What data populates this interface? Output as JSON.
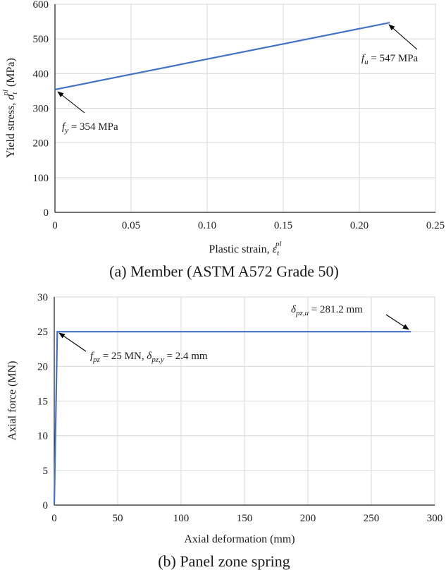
{
  "chart_data": [
    {
      "type": "line",
      "caption": "(a) Member (ASTM A572 Grade 50)",
      "xlabel": "Plastic strain, ",
      "xlabel_symbol": "ε",
      "xlabel_sub": "t",
      "xlabel_sup": "pl",
      "ylabel": "Yield stress, ",
      "ylabel_symbol": "σ",
      "ylabel_sub": "t",
      "ylabel_sup": "pl",
      "ylabel_unit": " (MPa)",
      "xlim": [
        0,
        0.25
      ],
      "ylim": [
        0,
        600
      ],
      "xticks": [
        0,
        0.05,
        0.1,
        0.15,
        0.2,
        0.25
      ],
      "xtick_labels": [
        "0",
        "0.05",
        "0.10",
        "0.15",
        "0.20",
        "0.25"
      ],
      "yticks": [
        0,
        100,
        200,
        300,
        400,
        500,
        600
      ],
      "ytick_labels": [
        "0",
        "100",
        "200",
        "300",
        "400",
        "500",
        "600"
      ],
      "grid": true,
      "series": [
        {
          "x": [
            0,
            0.22
          ],
          "y": [
            354,
            547
          ],
          "color": "#4472c4"
        }
      ],
      "annotations": [
        {
          "label": "f",
          "sub": "y",
          "rest": " = 354 MPa",
          "point": [
            0,
            354
          ]
        },
        {
          "label": "f",
          "sub": "u",
          "rest": " = 547 MPa",
          "point": [
            0.22,
            547
          ]
        }
      ]
    },
    {
      "type": "line",
      "caption": "(b) Panel zone spring",
      "xlabel": "Axial deformation (mm)",
      "ylabel": "Axial force (MN)",
      "xlim": [
        0,
        300
      ],
      "ylim": [
        0,
        30
      ],
      "xticks": [
        0,
        50,
        100,
        150,
        200,
        250,
        300
      ],
      "xtick_labels": [
        "0",
        "50",
        "100",
        "150",
        "200",
        "250",
        "300"
      ],
      "yticks": [
        0,
        5,
        10,
        15,
        20,
        25,
        30
      ],
      "ytick_labels": [
        "0",
        "5",
        "10",
        "15",
        "20",
        "25",
        "30"
      ],
      "grid": true,
      "series": [
        {
          "x": [
            0,
            2.4,
            281.2
          ],
          "y": [
            0,
            25,
            25
          ],
          "color": "#4472c4"
        }
      ],
      "annotations": [
        {
          "label": "f",
          "sub": "pz",
          "rest": " = 25 MN, ",
          "label2": "δ",
          "sub2": "pz,y",
          "rest2": " = 2.4 mm",
          "point": [
            2.4,
            25
          ]
        },
        {
          "label": "δ",
          "sub": "pz,u",
          "rest": " = 281.2 mm",
          "point": [
            281.2,
            25
          ]
        }
      ]
    }
  ]
}
